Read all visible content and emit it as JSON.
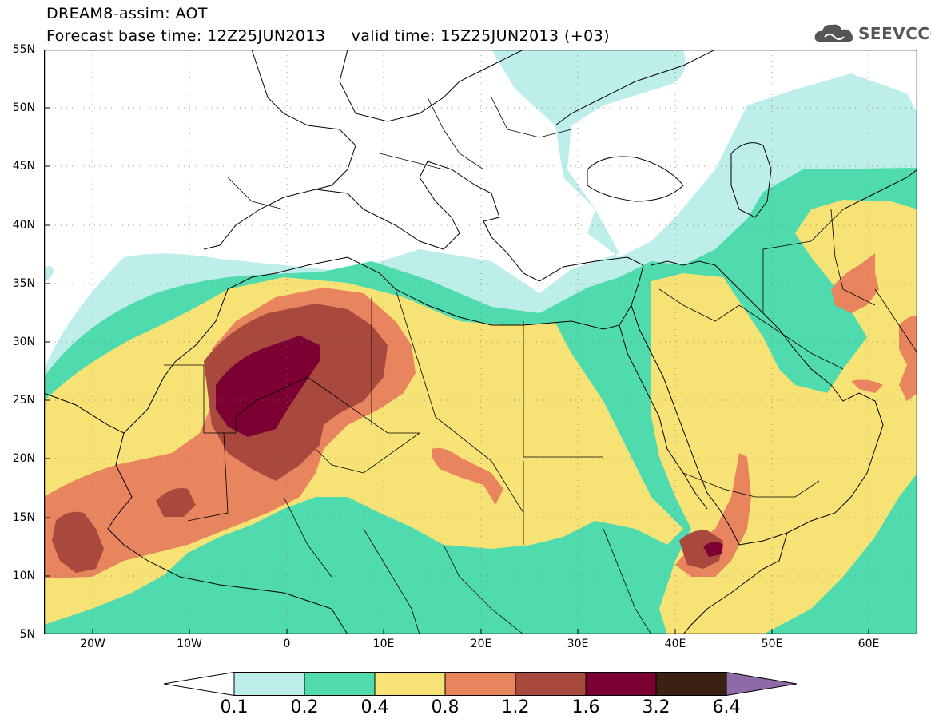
{
  "header": {
    "line1": "DREAM8-assim: AOT",
    "line2": "Forecast base time: 12Z25JUN2013     valid time: 15Z25JUN2013 (+03)"
  },
  "logo": {
    "text": "SEEVCCC",
    "icon": "cloud-icon"
  },
  "map": {
    "y_ticks": [
      "55N",
      "50N",
      "45N",
      "40N",
      "35N",
      "30N",
      "25N",
      "20N",
      "15N",
      "10N",
      "5N"
    ],
    "x_ticks": [
      "20W",
      "10W",
      "0",
      "10E",
      "20E",
      "30E",
      "40E",
      "50E",
      "60E"
    ],
    "lon_range": [
      -25,
      65
    ],
    "lat_range": [
      5,
      55
    ]
  },
  "legend": {
    "boundaries": [
      "0.1",
      "0.2",
      "0.4",
      "0.8",
      "1.2",
      "1.6",
      "3.2",
      "6.4"
    ],
    "colors": [
      "#ffffff",
      "#bdeee9",
      "#4fdbad",
      "#f7e375",
      "#e8855e",
      "#a9483d",
      "#7c0032",
      "#3b2014",
      "#8e6ba6"
    ]
  }
}
